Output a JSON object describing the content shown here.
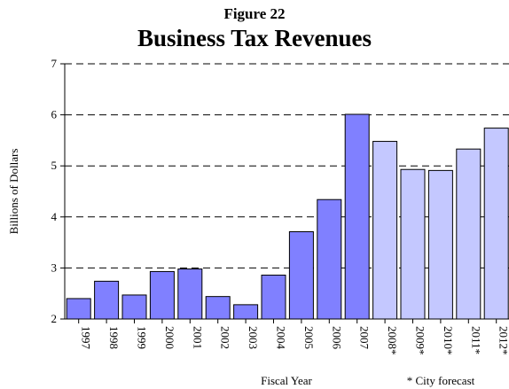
{
  "chart_data": {
    "type": "bar",
    "figure_label": "Figure 22",
    "title": "Business Tax Revenues",
    "xlabel": "Fiscal Year",
    "ylabel": "Billions of Dollars",
    "footnote": "* City forecast",
    "ylim": [
      2,
      7
    ],
    "yticks": [
      2,
      3,
      4,
      5,
      6,
      7
    ],
    "grid": "horizontal-dashed",
    "categories": [
      "1997",
      "1998",
      "1999",
      "2000",
      "2001",
      "2002",
      "2003",
      "2004",
      "2005",
      "2006",
      "2007",
      "2008*",
      "2009*",
      "2010*",
      "2011*",
      "2012*"
    ],
    "values": [
      2.4,
      2.74,
      2.47,
      2.93,
      2.98,
      2.44,
      2.28,
      2.86,
      3.71,
      4.34,
      6.01,
      5.48,
      4.93,
      4.91,
      5.33,
      5.74
    ],
    "forecast_from_index": 11,
    "colors": {
      "actual": "#8080ff",
      "forecast": "#c4c8ff",
      "edge": "#000000",
      "grid": "#000000"
    }
  }
}
